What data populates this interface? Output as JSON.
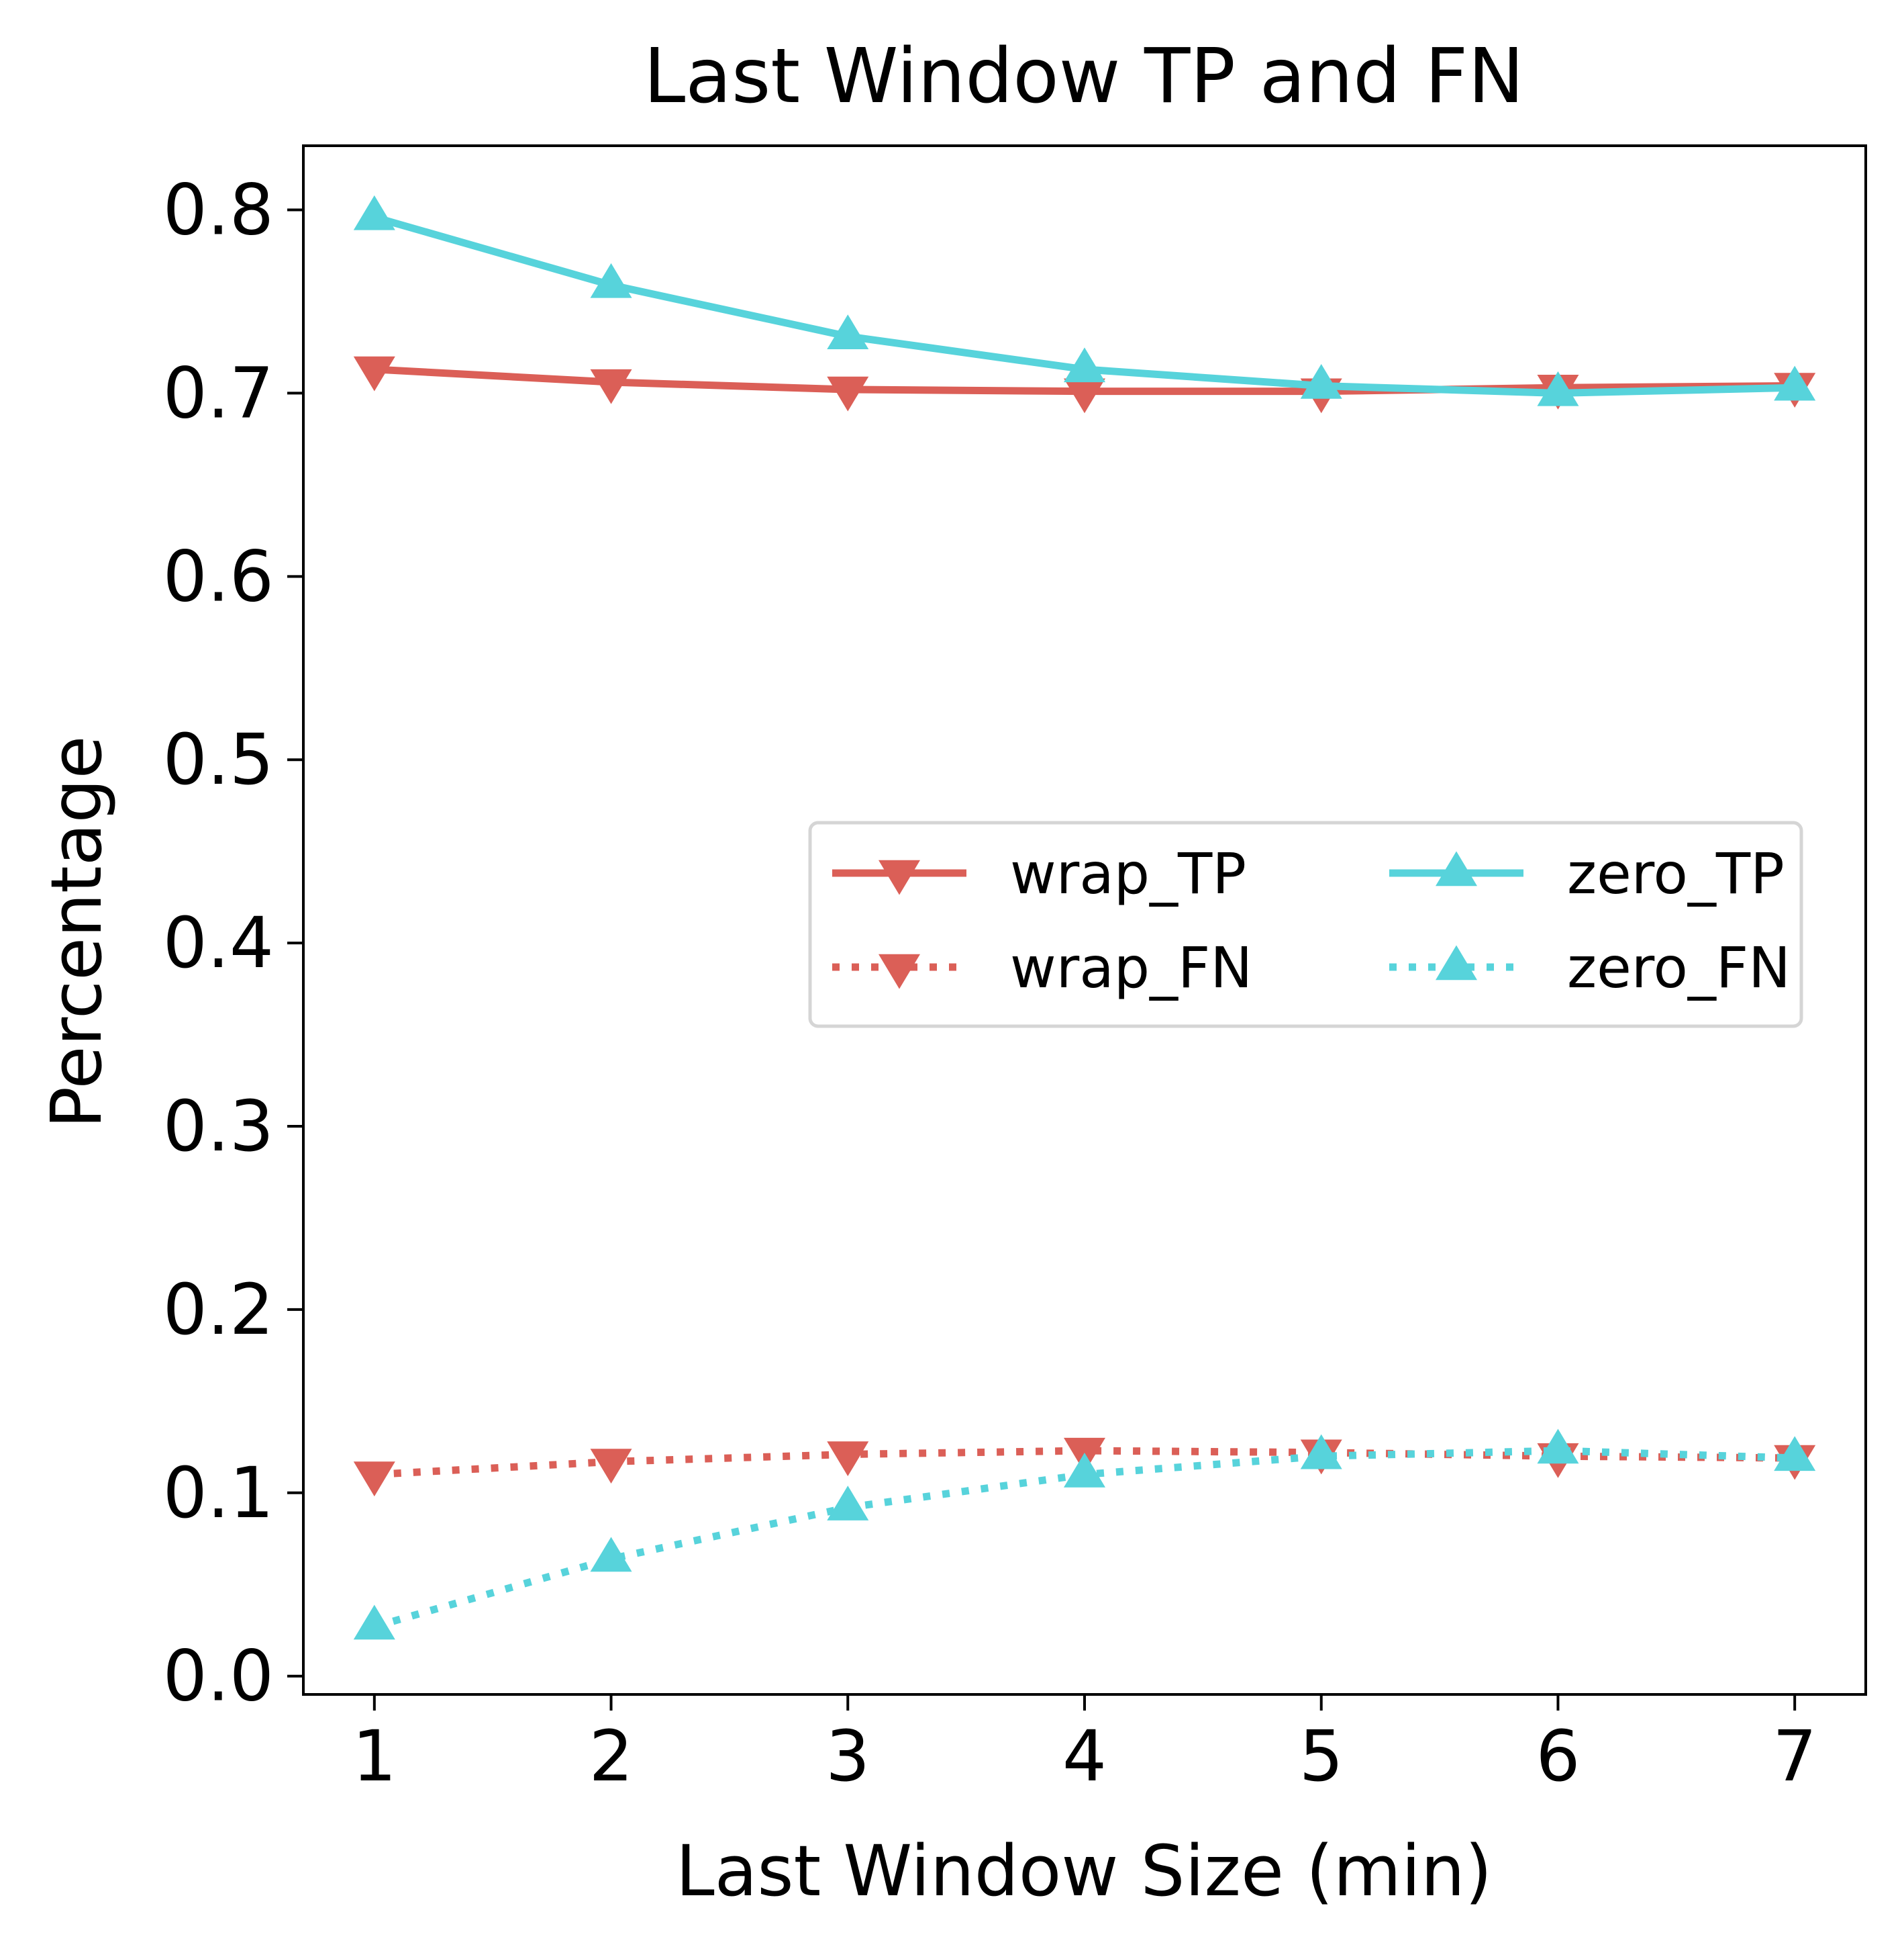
{
  "chart_data": {
    "type": "line",
    "title": "Last Window TP and FN",
    "xlabel": "Last Window Size (min)",
    "ylabel": "Percentage",
    "x": [
      1,
      2,
      3,
      4,
      5,
      6,
      7
    ],
    "xlim": [
      0.7,
      7.3
    ],
    "ylim": [
      -0.01,
      0.835
    ],
    "xticks": [
      1,
      2,
      3,
      4,
      5,
      6,
      7
    ],
    "yticks": [
      0.0,
      0.1,
      0.2,
      0.3,
      0.4,
      0.5,
      0.6,
      0.7,
      0.8
    ],
    "grid": false,
    "legend_position": "center-right",
    "series": [
      {
        "name": "wrap_TP",
        "values": [
          0.713,
          0.706,
          0.702,
          0.701,
          0.701,
          0.703,
          0.704
        ],
        "color": "#db5f57",
        "line": "solid",
        "marker": "triangle-down"
      },
      {
        "name": "wrap_FN",
        "values": [
          0.11,
          0.117,
          0.121,
          0.123,
          0.122,
          0.12,
          0.119
        ],
        "color": "#db5f57",
        "line": "dotted",
        "marker": "triangle-down"
      },
      {
        "name": "zero_TP",
        "values": [
          0.796,
          0.759,
          0.731,
          0.713,
          0.704,
          0.7,
          0.703
        ],
        "color": "#57d3db",
        "line": "solid",
        "marker": "triangle-up"
      },
      {
        "name": "zero_FN",
        "values": [
          0.027,
          0.064,
          0.092,
          0.11,
          0.12,
          0.123,
          0.119
        ],
        "color": "#57d3db",
        "line": "dotted",
        "marker": "triangle-up"
      }
    ]
  }
}
